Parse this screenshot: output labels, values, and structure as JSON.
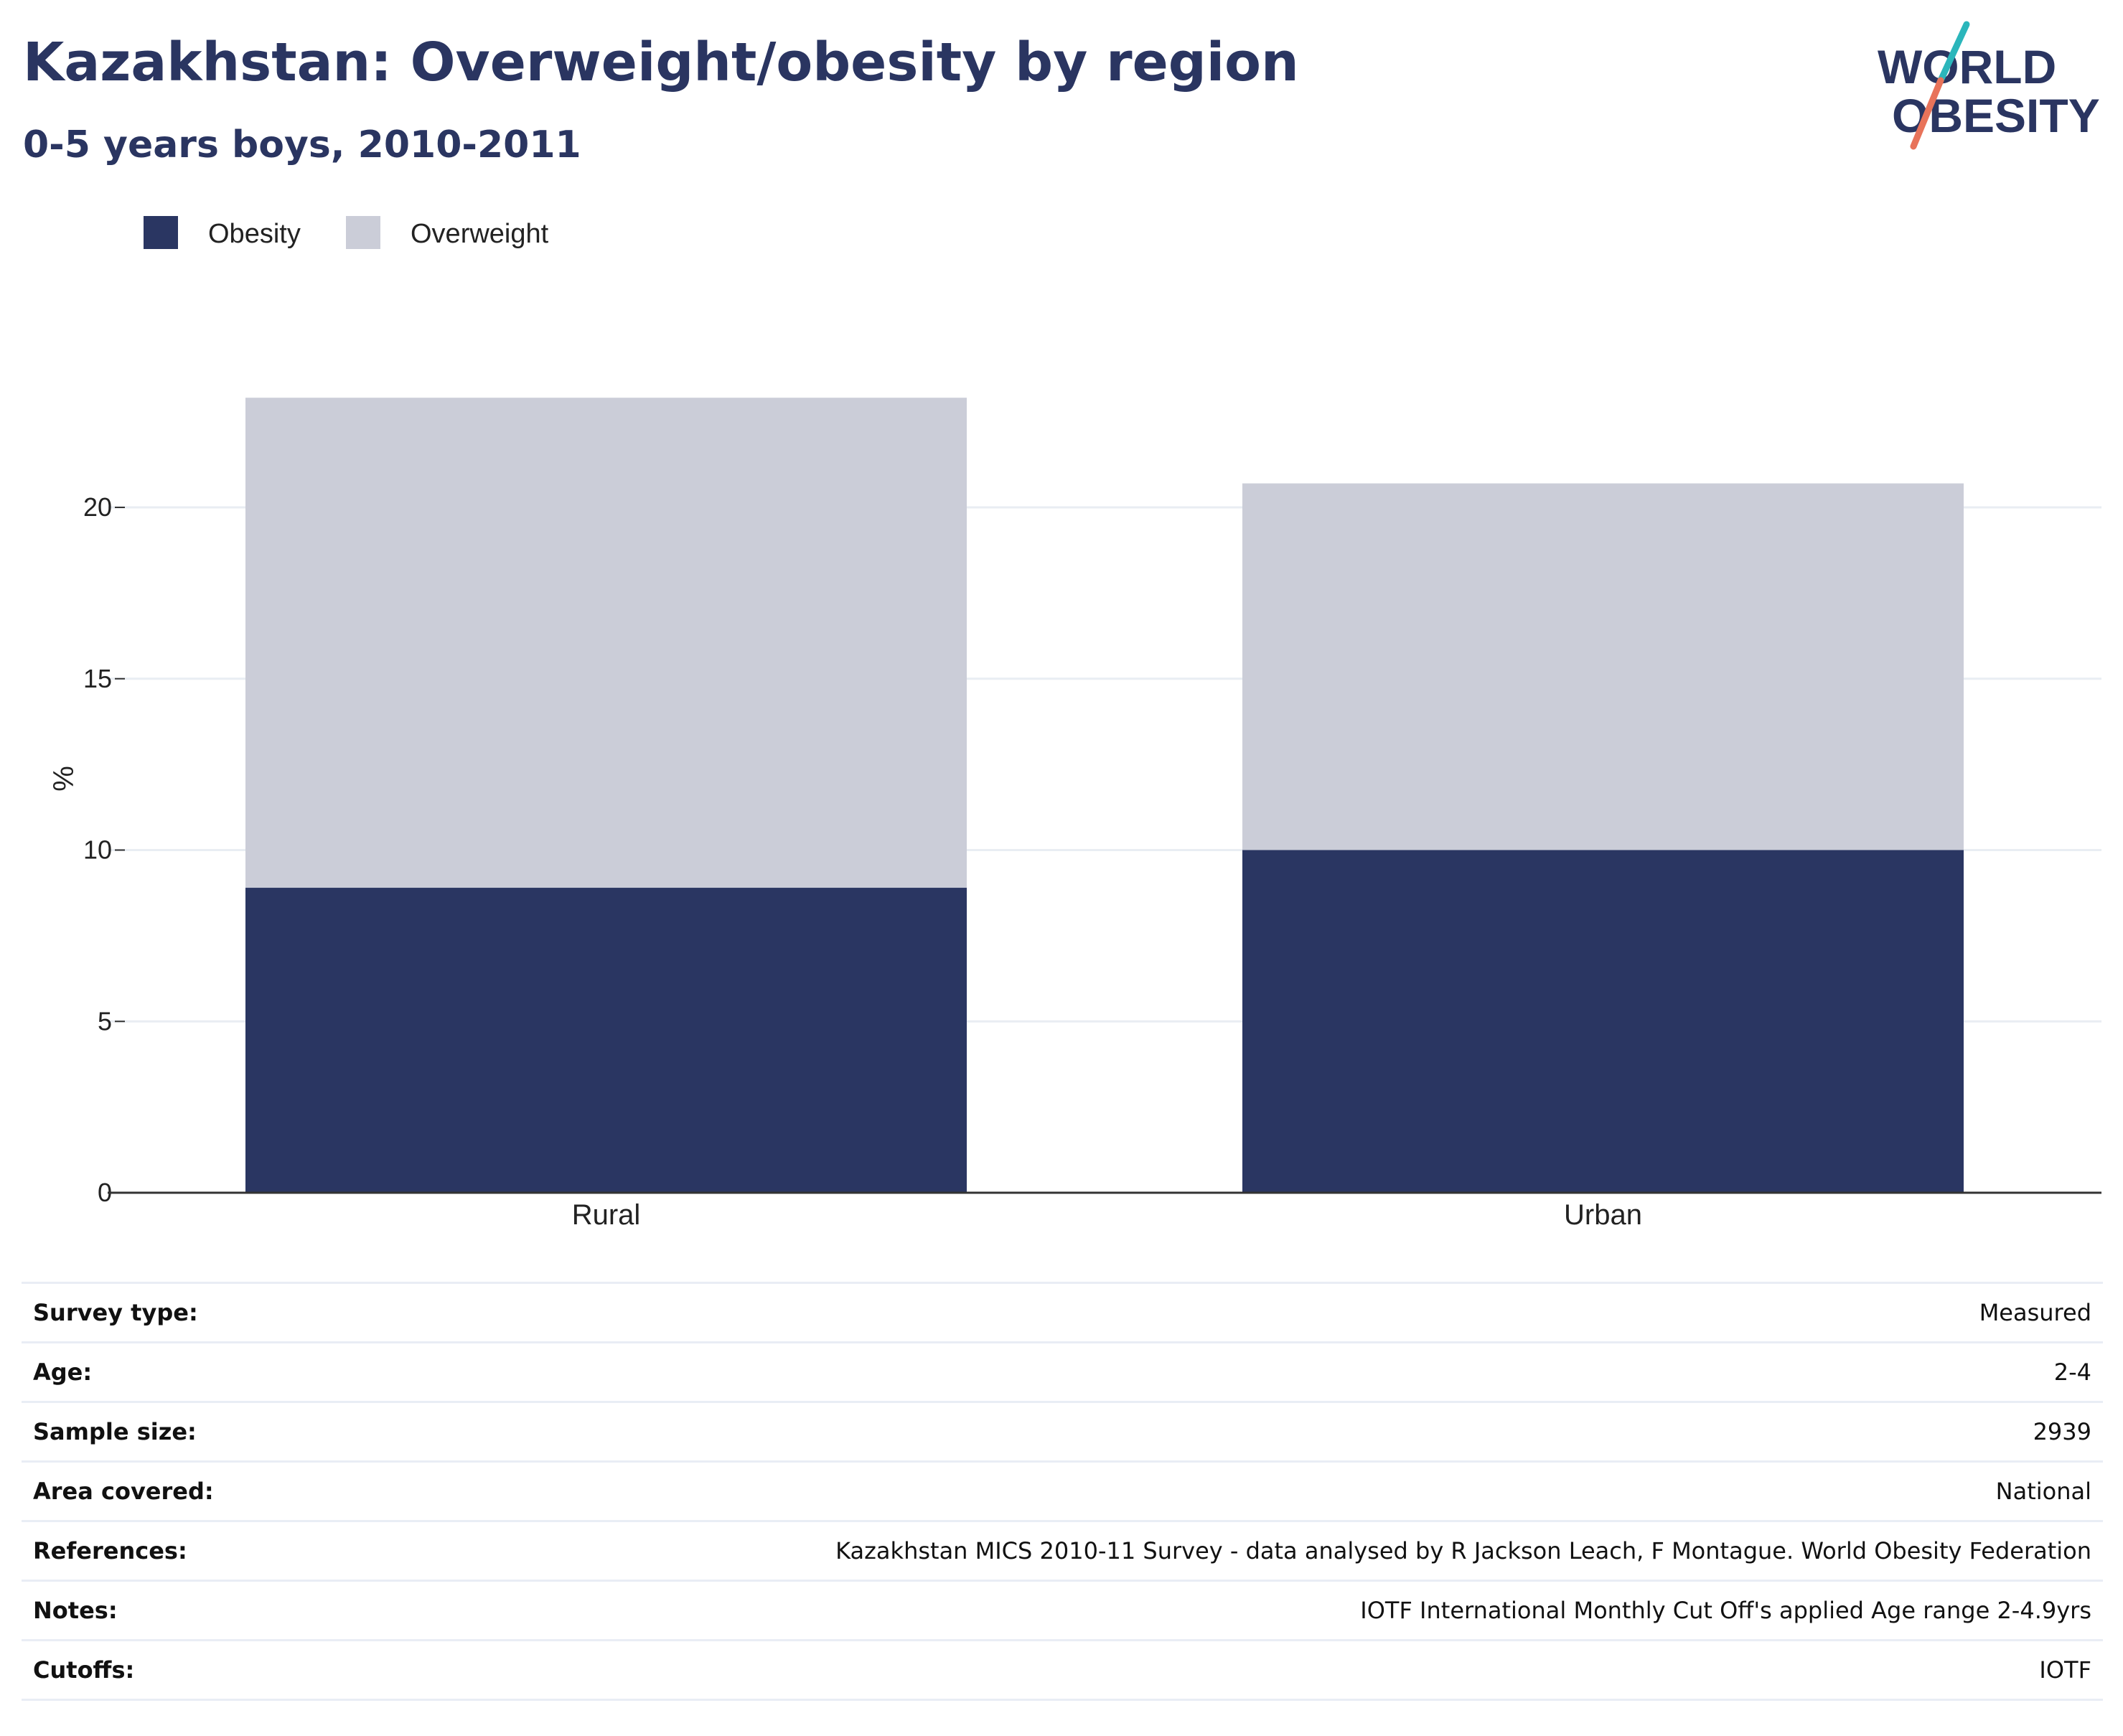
{
  "header": {
    "title": "Kazakhstan: Overweight/obesity by region",
    "subtitle": "0-5 years boys, 2010-2011"
  },
  "logo": {
    "line1": "WORLD",
    "line2": "OBESITY"
  },
  "colors": {
    "obesity": "#2a3662",
    "overweight": "#cbcdd8",
    "text": "#2a3561",
    "logo_teal": "#2bb6bb",
    "logo_coral": "#e8735a"
  },
  "chart_data": {
    "type": "bar",
    "stacked": true,
    "title": "Kazakhstan: Overweight/obesity by region",
    "subtitle": "0-5 years boys, 2010-2011",
    "xlabel": "",
    "ylabel": "%",
    "ylim": [
      0,
      25
    ],
    "yticks": [
      0,
      5,
      10,
      15,
      20
    ],
    "categories": [
      "Rural",
      "Urban"
    ],
    "series": [
      {
        "name": "Obesity",
        "values": [
          8.9,
          10.0
        ]
      },
      {
        "name": "Overweight",
        "values": [
          14.3,
          10.7
        ]
      }
    ],
    "legend_position": "top-left",
    "grid": true
  },
  "metadata": [
    {
      "key": "Survey type:",
      "value": "Measured"
    },
    {
      "key": "Age:",
      "value": "2-4"
    },
    {
      "key": "Sample size:",
      "value": "2939"
    },
    {
      "key": "Area covered:",
      "value": "National"
    },
    {
      "key": "References:",
      "value": "Kazakhstan MICS 2010-11 Survey - data analysed by R Jackson Leach, F Montague. World Obesity Federation"
    },
    {
      "key": "Notes:",
      "value": "IOTF International Monthly Cut Off's applied Age range 2-4.9yrs"
    },
    {
      "key": "Cutoffs:",
      "value": "IOTF"
    }
  ]
}
